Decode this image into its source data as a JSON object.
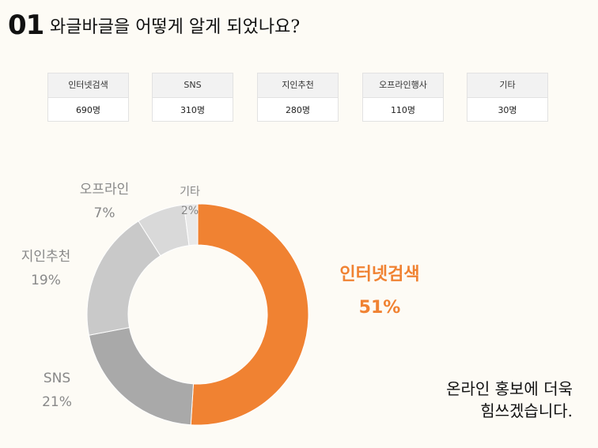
{
  "header": {
    "number": "01",
    "title": "와글바글을 어떻게 알게 되었나요?"
  },
  "table": {
    "columns": [
      "인터넷검색",
      "SNS",
      "지인추천",
      "오프라인행사",
      "기타"
    ],
    "values": [
      "690명",
      "310명",
      "280명",
      "110명",
      "30명"
    ]
  },
  "chart_data": {
    "type": "pie",
    "variant": "donut",
    "slices": [
      {
        "label": "인터넷검색",
        "value": 51,
        "pct_label": "51%",
        "color": "#f08232"
      },
      {
        "label": "SNS",
        "value": 21,
        "pct_label": "21%",
        "color": "#a9a9a9"
      },
      {
        "label": "지인추천",
        "value": 19,
        "pct_label": "19%",
        "color": "#c9c9c9"
      },
      {
        "label": "오프라인",
        "value": 7,
        "pct_label": "7%",
        "color": "#d9d9d9"
      },
      {
        "label": "기타",
        "value": 2,
        "pct_label": "2%",
        "color": "#e9e9e9"
      }
    ],
    "start_angle_deg": 0,
    "direction": "clockwise",
    "highlight_color": "#f08232",
    "label_color": "#888888"
  },
  "closing": {
    "line1": "온라인 홍보에 더욱",
    "line2": "힘쓰겠습니다."
  }
}
